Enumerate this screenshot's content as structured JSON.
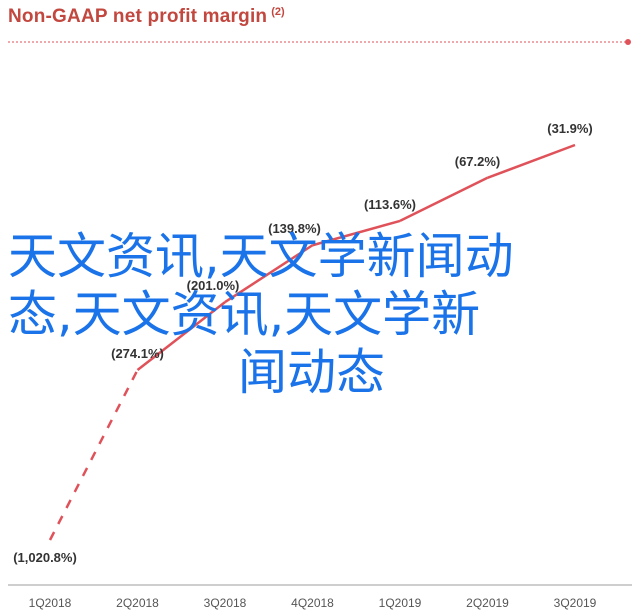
{
  "colors": {
    "title": "#c2473f",
    "line": "#e0525a",
    "overlay_text": "#1a73e8",
    "axis": "#bdbdbd"
  },
  "overlay": {
    "line1": "天文资讯,天文学新闻动",
    "line2": "态,天文资讯,天文学新",
    "line3": "闻动态"
  },
  "chart_data": {
    "type": "line",
    "title": "Non-GAAP net profit margin",
    "title_note": "(2)",
    "categories": [
      "1Q2018",
      "2Q2018",
      "3Q2018",
      "4Q2018",
      "1Q2019",
      "2Q2019",
      "3Q2019"
    ],
    "series": [
      {
        "values": [
          -1020.8,
          -274.1,
          -201.0,
          -139.8,
          -113.6,
          -67.2,
          -31.9
        ],
        "labels": [
          "(1,020.8%)",
          "(274.1%)",
          "(201.0%)",
          "(139.8%)",
          "(113.6%)",
          "(67.2%)",
          "(31.9%)"
        ],
        "dashed_segments": [
          0
        ]
      }
    ],
    "ylim": [
      -1100,
      0
    ],
    "grid": false
  }
}
